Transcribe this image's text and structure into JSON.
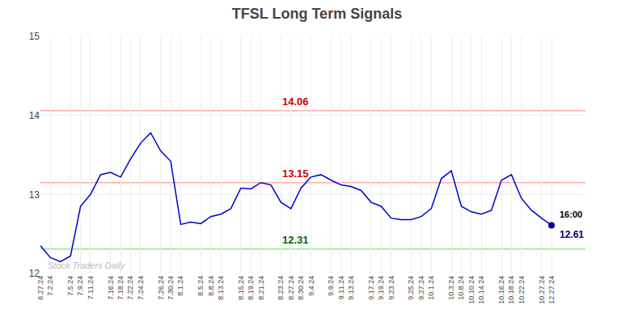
{
  "chart_data": {
    "type": "line",
    "title": "TFSL Long Term Signals",
    "categories": [
      "6.27.24",
      "7.2.24",
      null,
      "7.5.24",
      "7.9.24",
      "7.11.24",
      null,
      "7.16.24",
      "7.18.24",
      "7.22.24",
      "7.24.24",
      null,
      "7.26.24",
      "7.30.24",
      "8.1.24",
      null,
      "8.5.24",
      "8.8.24",
      "8.13.24",
      null,
      "8.15.24",
      "8.19.24",
      "8.21.24",
      null,
      "8.23.24",
      "8.27.24",
      "8.30.24",
      "9.4.24",
      null,
      "9.9.24",
      "9.11.24",
      "9.13.24",
      null,
      "9.17.24",
      "9.19.24",
      "9.23.24",
      null,
      "9.25.24",
      "9.27.24",
      "10.1.24",
      null,
      "10.3.24",
      "10.8.24",
      "10.10.24",
      "10.14.24",
      null,
      "10.16.24",
      "10.18.24",
      "10.22.24",
      null,
      "10.27.24",
      "12.27.24"
    ],
    "values": [
      12.35,
      12.2,
      12.15,
      12.22,
      12.85,
      13.0,
      13.25,
      13.28,
      13.22,
      13.45,
      13.65,
      13.78,
      13.55,
      13.42,
      12.62,
      12.65,
      12.63,
      12.72,
      12.75,
      12.82,
      13.08,
      13.07,
      13.15,
      13.12,
      12.9,
      12.82,
      13.08,
      13.22,
      13.25,
      13.18,
      13.12,
      13.1,
      13.05,
      12.9,
      12.85,
      12.7,
      12.68,
      12.68,
      12.72,
      12.82,
      13.2,
      13.3,
      12.85,
      12.78,
      12.75,
      12.8,
      13.18,
      13.25,
      12.95,
      12.8,
      12.7,
      12.61
    ],
    "color": "#0000cc",
    "ylim": [
      12,
      15
    ],
    "yticks": [
      12,
      13,
      14,
      15
    ],
    "grid": true,
    "hlines": [
      {
        "value": 14.06,
        "color": "#ffaaaa",
        "label": "14.06",
        "label_color": "#cc0000"
      },
      {
        "value": 13.15,
        "color": "#ffaaaa",
        "label": "13.15",
        "label_color": "#cc0000"
      },
      {
        "value": 12.31,
        "color": "#90ee90",
        "label": "12.31",
        "label_color": "#006600"
      }
    ],
    "end_point": {
      "color": "#00008b",
      "labels": [
        {
          "text": "16:00",
          "color": "#000000"
        },
        {
          "text": "12.61",
          "color": "#00008b"
        }
      ]
    },
    "annotations": [
      {
        "text": "Stock Traders Daily",
        "color": "#bbbbbb"
      }
    ]
  }
}
